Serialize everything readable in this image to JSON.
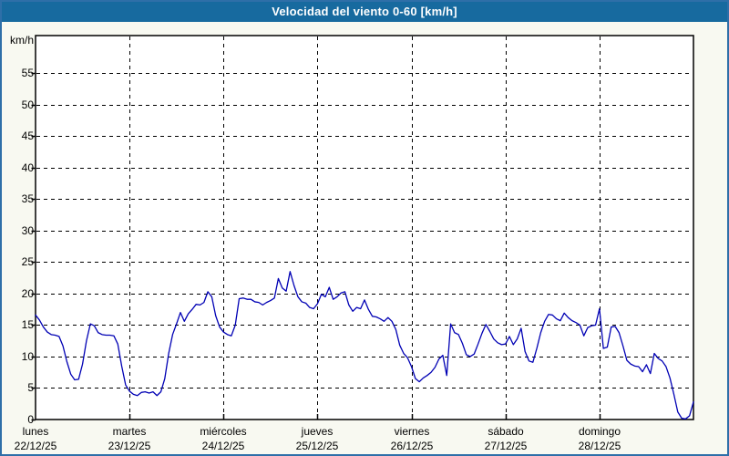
{
  "chart_data": {
    "type": "line",
    "title": "Velocidad del viento 0-60 [km/h]",
    "y_unit": "km/h",
    "ylabel": "km/h",
    "ylim": [
      0,
      61
    ],
    "y_ticks": [
      0,
      5,
      10,
      15,
      20,
      25,
      30,
      35,
      40,
      45,
      50,
      55
    ],
    "grid": "dashed-black",
    "legend": "none",
    "days": [
      {
        "name": "lunes",
        "date": "22/12/25"
      },
      {
        "name": "martes",
        "date": "23/12/25"
      },
      {
        "name": "miércoles",
        "date": "24/12/25"
      },
      {
        "name": "jueves",
        "date": "25/12/25"
      },
      {
        "name": "viernes",
        "date": "26/12/25"
      },
      {
        "name": "sábado",
        "date": "27/12/25"
      },
      {
        "name": "domingo",
        "date": "28/12/25"
      }
    ],
    "series": [
      {
        "name": "Velocidad del viento",
        "interval_hours": 1,
        "values": [
          16.6,
          15.8,
          14.7,
          13.9,
          13.5,
          13.4,
          13.2,
          11.7,
          9.2,
          7.2,
          6.3,
          6.4,
          8.8,
          12.5,
          15.2,
          14.9,
          13.8,
          13.5,
          13.4,
          13.4,
          13.3,
          12.0,
          8.5,
          5.5,
          4.5,
          4.0,
          3.8,
          4.3,
          4.4,
          4.2,
          4.4,
          3.8,
          4.4,
          6.5,
          10.5,
          13.5,
          15.2,
          17.0,
          15.6,
          16.8,
          17.5,
          18.3,
          18.2,
          18.6,
          20.3,
          19.5,
          16.5,
          14.7,
          13.9,
          13.5,
          13.3,
          15.0,
          19.2,
          19.3,
          19.1,
          19.1,
          18.7,
          18.6,
          18.2,
          18.6,
          18.9,
          19.3,
          22.4,
          20.9,
          20.4,
          23.5,
          21.3,
          19.5,
          18.7,
          18.5,
          17.8,
          17.6,
          18.4,
          19.9,
          19.5,
          21.0,
          19.1,
          19.5,
          20.1,
          20.3,
          18.2,
          17.2,
          17.8,
          17.6,
          19.0,
          17.5,
          16.4,
          16.3,
          16.0,
          15.6,
          16.2,
          15.6,
          14.3,
          11.8,
          10.5,
          9.8,
          8.4,
          6.5,
          6.0,
          6.6,
          7.0,
          7.5,
          8.3,
          9.6,
          10.2,
          7.0,
          15.2,
          13.8,
          13.5,
          12.1,
          10.3,
          10.0,
          10.4,
          12.0,
          13.7,
          15.1,
          14.0,
          12.8,
          12.2,
          11.9,
          12.0,
          13.2,
          11.9,
          12.8,
          14.5,
          10.8,
          9.3,
          9.1,
          11.3,
          13.8,
          15.6,
          16.7,
          16.6,
          16.0,
          15.7,
          16.9,
          16.2,
          15.7,
          15.4,
          15.0,
          13.3,
          14.6,
          14.9,
          15.0,
          17.6,
          11.3,
          11.5,
          14.7,
          14.8,
          13.8,
          11.7,
          9.4,
          8.8,
          8.5,
          8.4,
          7.6,
          8.7,
          7.3,
          10.5,
          9.7,
          9.3,
          8.4,
          6.6,
          4.0,
          1.2,
          0.2,
          0.1,
          0.6,
          2.8
        ]
      }
    ],
    "colors": {
      "line": "#0000b4",
      "titlebar_bg": "#176a9f",
      "title_text": "#ffffff",
      "frame_border": "#2e6fa8",
      "canvas_bg": "#f8f9f1",
      "plot_bg": "#ffffff",
      "grid": "#000000",
      "axis_text": "#000000"
    }
  }
}
